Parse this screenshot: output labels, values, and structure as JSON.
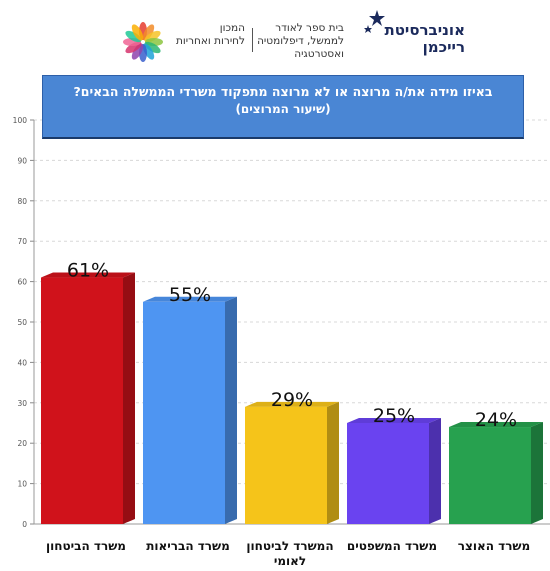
{
  "header": {
    "reichman": [
      "אוניברסיטת",
      "רייכמן"
    ],
    "school": [
      "בית ספר לאודר",
      "לממשל, דיפלומטיה",
      "ואסטרטגיה"
    ],
    "institute": [
      "המכון",
      "לחירות ואחריות"
    ],
    "icons": {
      "reichman_logo": "stars-icon",
      "institute_logo": "flower-icon"
    }
  },
  "chart_data": {
    "type": "bar",
    "title": "באיזו מידה את/ה מרוצה או לא מרוצה מתפקוד משרדי הממשלה הבאים?",
    "subtitle": "(שיעור המרוצים)",
    "categories": [
      "משרד הביטחון",
      "משרד הבריאות",
      "המשרד לביטחון לאומי",
      "משרד המשפטים",
      "משרד האוצר"
    ],
    "values": [
      61,
      55,
      29,
      25,
      24
    ],
    "value_labels": [
      "61%",
      "55%",
      "29%",
      "25%",
      "24%"
    ],
    "colors": [
      "#d0121b",
      "#4e95f2",
      "#f5c41a",
      "#6a43f0",
      "#27a14f"
    ],
    "ylim": [
      0,
      100
    ],
    "yticks": [
      0,
      10,
      20,
      30,
      40,
      50,
      60,
      70,
      80,
      90,
      100
    ],
    "grid": true,
    "xlabel": "",
    "ylabel": ""
  }
}
